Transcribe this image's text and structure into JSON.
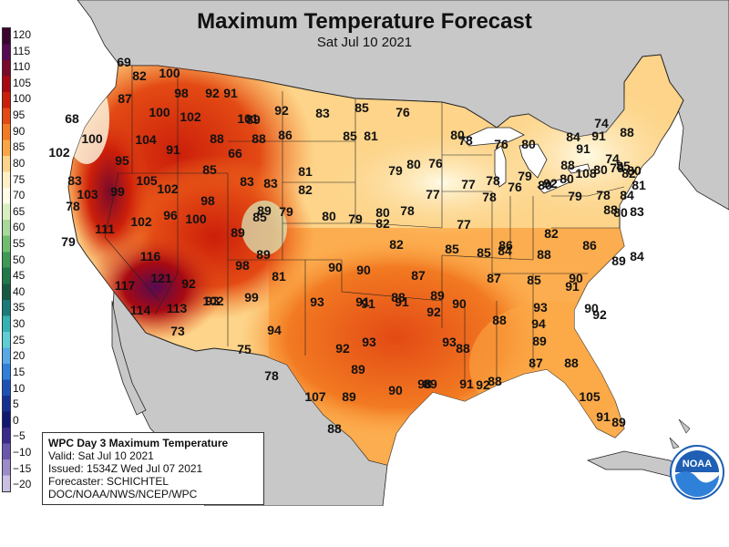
{
  "title": "Maximum Temperature Forecast",
  "subtitle": "Sat Jul 10 2021",
  "legend": {
    "labels": [
      "120",
      "115",
      "110",
      "105",
      "100",
      "95",
      "90",
      "85",
      "80",
      "75",
      "70",
      "65",
      "60",
      "55",
      "50",
      "45",
      "40",
      "35",
      "30",
      "25",
      "20",
      "15",
      "10",
      "5",
      "0",
      "−5",
      "−10",
      "−15",
      "−20"
    ],
    "colors": [
      "#3a0630",
      "#560a52",
      "#7a0a2a",
      "#a80a12",
      "#cc1f0a",
      "#e34a14",
      "#f27a22",
      "#fba645",
      "#fdd489",
      "#fef0c4",
      "#fefbe6",
      "#d9efc0",
      "#a8d89a",
      "#6fbe6e",
      "#3e9a55",
      "#21784a",
      "#155a40",
      "#1b7a7a",
      "#34b3b3",
      "#5fcfd4",
      "#58a9e6",
      "#2f80d9",
      "#1c52b8",
      "#143090",
      "#101870",
      "#3a2a8a",
      "#6a58ae",
      "#9c8cc9",
      "#c9c0e4"
    ]
  },
  "info_box": {
    "header": "WPC Day 3 Maximum Temperature",
    "valid": "Valid: Sat Jul 10 2021",
    "issued": "Issued: 1534Z Wed Jul 07 2021",
    "forecaster": "Forecaster: SCHICHTEL",
    "org": "DOC/NOAA/NWS/NCEP/WPC"
  },
  "logo": {
    "text": "NOAA",
    "color": "#1f5fb4"
  },
  "stations": [
    "69",
    "82",
    "100",
    "98",
    "92",
    "91",
    "87",
    "100",
    "102",
    "68",
    "101",
    "100",
    "104",
    "91",
    "88",
    "89",
    "92",
    "88",
    "86",
    "83",
    "85",
    "76",
    "66",
    "102",
    "95",
    "85",
    "83",
    "83",
    "85",
    "81",
    "79",
    "80",
    "78",
    "76",
    "80",
    "80",
    "81",
    "74",
    "105",
    "102",
    "98",
    "82",
    "83",
    "78",
    "76",
    "77",
    "77",
    "78",
    "78",
    "76",
    "79",
    "80",
    "80",
    "108",
    "103",
    "99",
    "100",
    "89",
    "85",
    "79",
    "80",
    "79",
    "80",
    "78",
    "77",
    "82",
    "86",
    "85",
    "85",
    "111",
    "102",
    "96",
    "89",
    "84",
    "85",
    "82",
    "89",
    "93",
    "98",
    "81",
    "82",
    "90",
    "90",
    "117",
    "116",
    "121",
    "92",
    "102",
    "93",
    "91",
    "87",
    "85",
    "88",
    "87",
    "84",
    "114",
    "113",
    "99",
    "94",
    "90",
    "92",
    "89",
    "93",
    "91",
    "93",
    "91",
    "90",
    "88",
    "93",
    "92",
    "88",
    "89",
    "89",
    "90",
    "94",
    "88",
    "91",
    "90",
    "92",
    "89",
    "89",
    "86",
    "87",
    "89",
    "84",
    "88",
    "83",
    "80",
    "78",
    "79",
    "84",
    "82",
    "79",
    "74",
    "80",
    "81",
    "91",
    "88",
    "91",
    "92",
    "88",
    "88",
    "80",
    "79",
    "73",
    "75",
    "78",
    "107",
    "105",
    "98",
    "91",
    "92",
    "88",
    "91",
    "89",
    "88",
    "88",
    "89",
    "88",
    "92"
  ],
  "colors": {
    "ocean": "#ffffff",
    "land_outside": "#c8c8c8",
    "water_lakes": "#ffffff",
    "boundary": "#222222"
  }
}
